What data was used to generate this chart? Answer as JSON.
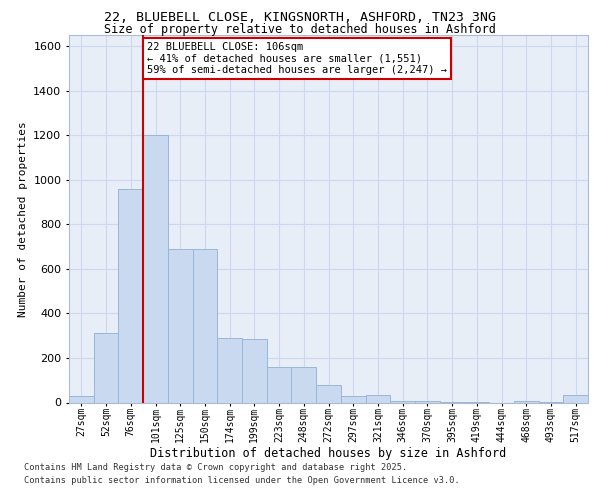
{
  "title_line1": "22, BLUEBELL CLOSE, KINGSNORTH, ASHFORD, TN23 3NG",
  "title_line2": "Size of property relative to detached houses in Ashford",
  "xlabel": "Distribution of detached houses by size in Ashford",
  "ylabel": "Number of detached properties",
  "categories": [
    "27sqm",
    "52sqm",
    "76sqm",
    "101sqm",
    "125sqm",
    "150sqm",
    "174sqm",
    "199sqm",
    "223sqm",
    "248sqm",
    "272sqm",
    "297sqm",
    "321sqm",
    "346sqm",
    "370sqm",
    "395sqm",
    "419sqm",
    "444sqm",
    "468sqm",
    "493sqm",
    "517sqm"
  ],
  "values": [
    30,
    310,
    960,
    1200,
    690,
    690,
    290,
    285,
    160,
    160,
    80,
    28,
    32,
    8,
    8,
    4,
    4,
    0,
    8,
    4,
    32
  ],
  "bar_color": "#c9daf0",
  "bar_edgecolor": "#9ab5d8",
  "redline_index": 3,
  "annotation_text": "22 BLUEBELL CLOSE: 106sqm\n← 41% of detached houses are smaller (1,551)\n59% of semi-detached houses are larger (2,247) →",
  "annotation_box_edgecolor": "#cc0000",
  "annotation_box_facecolor": "#ffffff",
  "ylim": [
    0,
    1650
  ],
  "yticks": [
    0,
    200,
    400,
    600,
    800,
    1000,
    1200,
    1400,
    1600
  ],
  "grid_color": "#cdd8ec",
  "background_color": "#e8eef8",
  "footer_line1": "Contains HM Land Registry data © Crown copyright and database right 2025.",
  "footer_line2": "Contains public sector information licensed under the Open Government Licence v3.0."
}
